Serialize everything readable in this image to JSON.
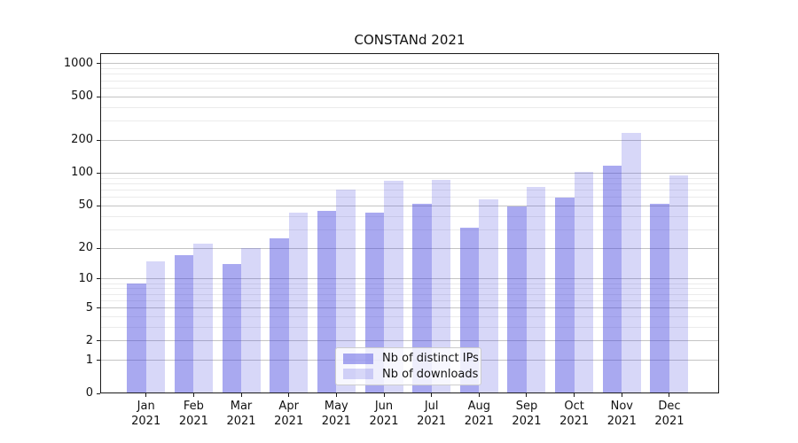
{
  "chart_data": {
    "type": "bar",
    "title": "CONSTANd 2021",
    "scale": "log1p",
    "grid": true,
    "legend_position": "lower center",
    "categories": [
      "Jan",
      "Feb",
      "Mar",
      "Apr",
      "May",
      "Jun",
      "Jul",
      "Aug",
      "Sep",
      "Oct",
      "Nov",
      "Dec"
    ],
    "category_year": "2021",
    "series": [
      {
        "name": "Nb of distinct IPs",
        "color": "#4040de",
        "alpha": 0.45,
        "values": [
          9,
          17,
          14,
          25,
          45,
          43,
          52,
          31,
          49,
          60,
          118,
          52
        ]
      },
      {
        "name": "Nb of downloads",
        "color": "#4040de",
        "alpha": 0.21,
        "values": [
          15,
          22,
          20,
          43,
          70,
          85,
          86,
          57,
          74,
          103,
          235,
          95
        ]
      }
    ],
    "y_ticks": [
      0,
      1,
      2,
      5,
      10,
      20,
      50,
      100,
      200,
      500,
      1000
    ],
    "y_minor_gridlines": [
      3,
      4,
      6,
      7,
      8,
      9,
      30,
      40,
      60,
      70,
      80,
      90,
      300,
      400,
      600,
      700,
      800,
      900
    ],
    "ylim": [
      0,
      1250
    ],
    "xlabel": "",
    "ylabel": ""
  }
}
